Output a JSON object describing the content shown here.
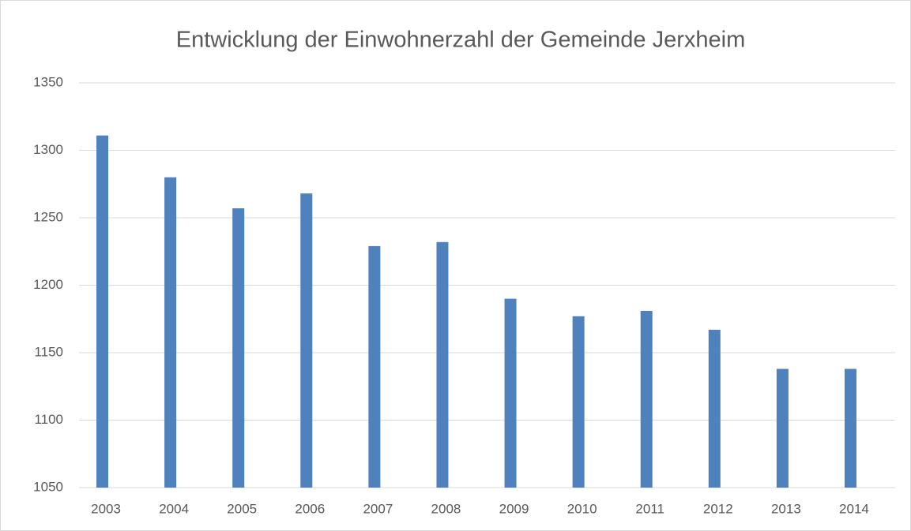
{
  "chart_data": {
    "type": "bar",
    "title": "Entwicklung der Einwohnerzahl der Gemeinde Jerxheim",
    "categories": [
      "2003",
      "2004",
      "2005",
      "2006",
      "2007",
      "2008",
      "2009",
      "2010",
      "2011",
      "2012",
      "2013",
      "2014"
    ],
    "values": [
      1311,
      1280,
      1257,
      1268,
      1229,
      1232,
      1190,
      1177,
      1181,
      1167,
      1138,
      1138
    ],
    "color": "#4f81bd",
    "ylim": [
      1050,
      1350
    ],
    "yticks": [
      1050,
      1100,
      1150,
      1200,
      1250,
      1300,
      1350
    ],
    "grid": true
  }
}
